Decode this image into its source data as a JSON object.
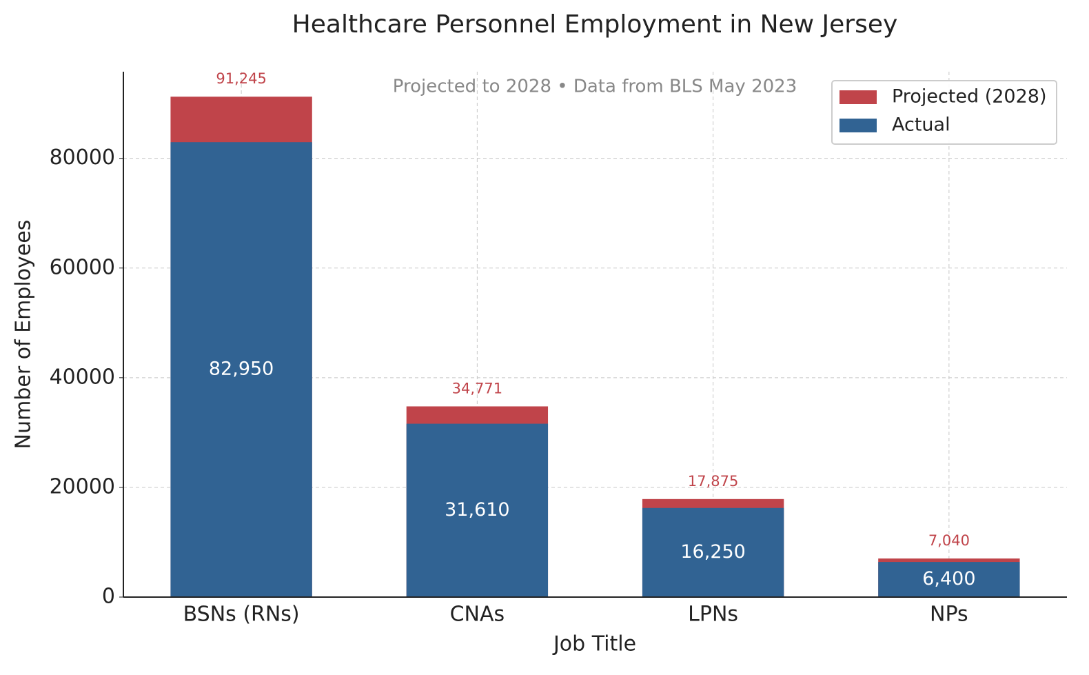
{
  "chart_data": {
    "type": "bar",
    "barmode": "overlay",
    "title": "Healthcare Personnel Employment in New Jersey",
    "subtitle": "Projected to 2028 • Data from BLS May 2023",
    "xlabel": "Job Title",
    "ylabel": "Number of Employees",
    "categories": [
      "BSNs (RNs)",
      "CNAs",
      "LPNs",
      "NPs"
    ],
    "series": [
      {
        "name": "Projected (2028)",
        "color": "#c0444a",
        "values": [
          91245,
          34771,
          17875,
          7040
        ],
        "value_labels": [
          "91,245",
          "34,771",
          "17,875",
          "7,040"
        ]
      },
      {
        "name": "Actual",
        "color": "#316393",
        "values": [
          82950,
          31610,
          16250,
          6400
        ],
        "value_labels": [
          "82,950",
          "31,610",
          "16,250",
          "6,400"
        ]
      }
    ],
    "ylim": [
      0,
      95800
    ],
    "yticks": [
      0,
      20000,
      40000,
      60000,
      80000
    ],
    "grid": true,
    "legend": "upper right"
  }
}
